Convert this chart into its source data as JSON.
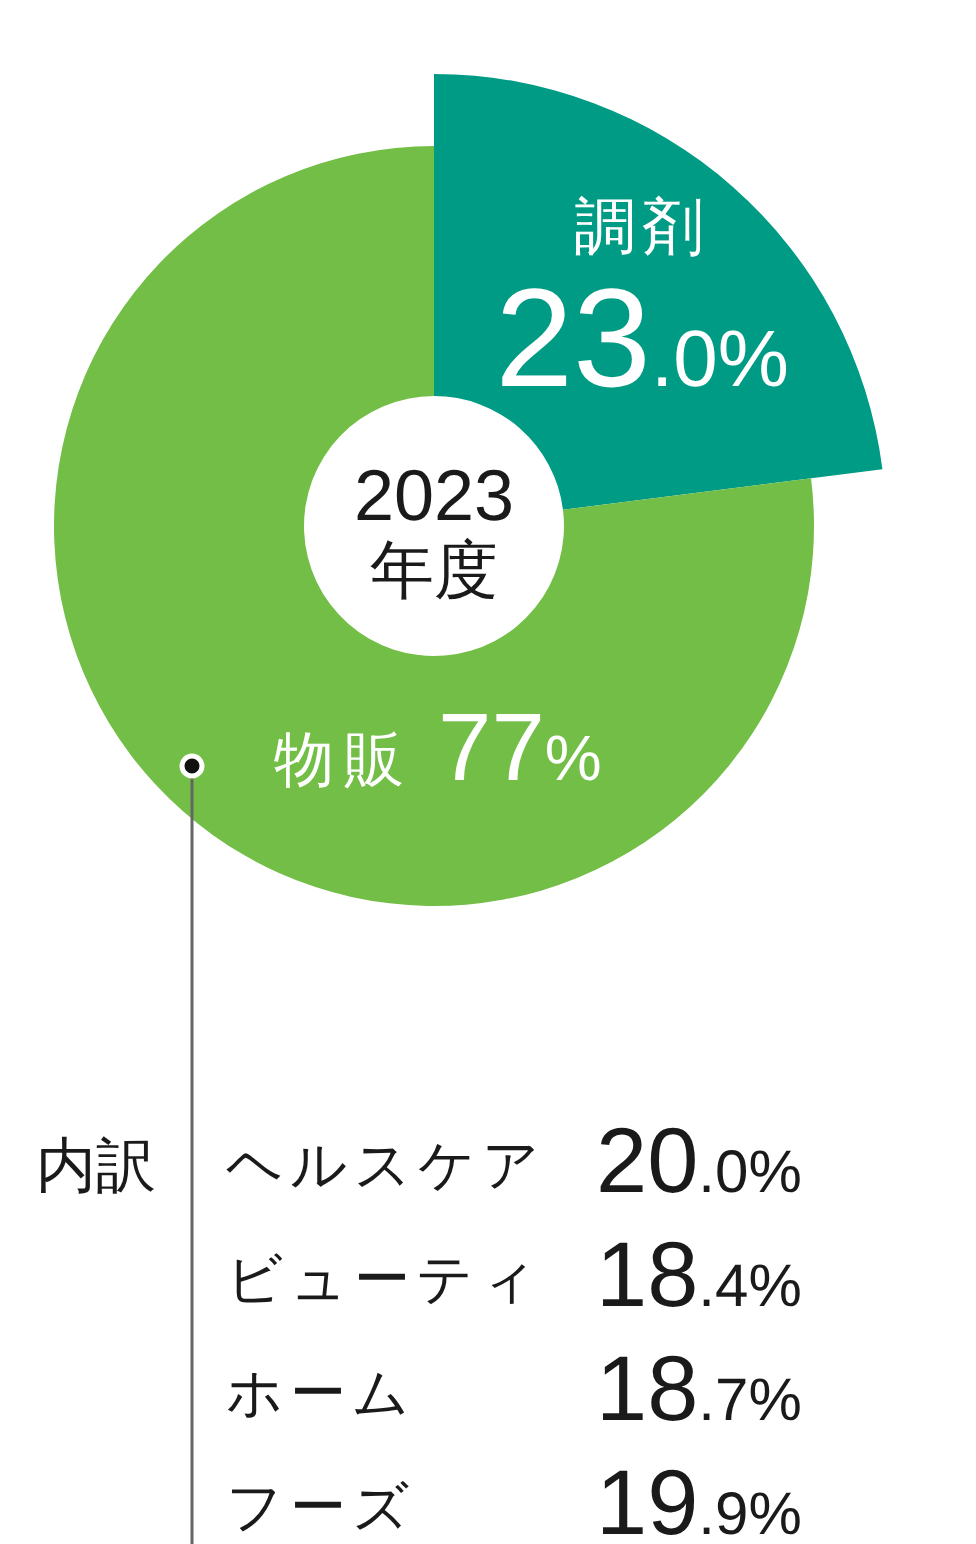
{
  "chart_data": [
    {
      "type": "donut",
      "title": "2023\n年度",
      "categories": [
        "調剤",
        "物販"
      ],
      "values": [
        23.0,
        77
      ],
      "colors": [
        "#009b84",
        "#73be46"
      ],
      "value_labels": [
        "23.0%",
        "77%"
      ]
    },
    {
      "type": "other",
      "title": "内訳",
      "categories": [
        "ヘルスケア",
        "ビューティ",
        "ホーム",
        "フーズ"
      ],
      "values": [
        20.0,
        18.4,
        18.7,
        19.9
      ],
      "value_labels": [
        "20.0%",
        "18.4%",
        "18.7%",
        "19.9%"
      ]
    }
  ]
}
